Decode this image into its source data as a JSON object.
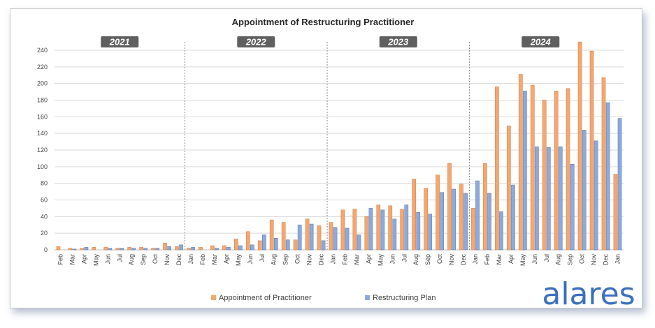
{
  "chart_data": {
    "type": "bar",
    "title": "Appointment of Restructuring Practitioner",
    "ylim": [
      0,
      240
    ],
    "yticks": [
      0,
      20,
      40,
      60,
      80,
      100,
      120,
      140,
      160,
      180,
      200,
      220,
      240
    ],
    "grid": true,
    "legend_position": "bottom",
    "year_labels": [
      "2021",
      "2022",
      "2023",
      "2024"
    ],
    "year_start_indices": [
      0,
      11,
      23,
      35
    ],
    "categories": [
      "Feb",
      "Mar",
      "Apr",
      "May",
      "Jun",
      "Jul",
      "Aug",
      "Sep",
      "Oct",
      "Nov",
      "Dec",
      "Jan",
      "Feb",
      "Mar",
      "Apr",
      "May",
      "Jun",
      "Jul",
      "Aug",
      "Sep",
      "Oct",
      "Nov",
      "Dec",
      "Jan",
      "Feb",
      "Mar",
      "Apr",
      "May",
      "Jun",
      "Jul",
      "Aug",
      "Sep",
      "Oct",
      "Nov",
      "Dec",
      "Jan",
      "Feb",
      "Mar",
      "Apr",
      "May",
      "Jun",
      "Jul",
      "Aug",
      "Sep",
      "Oct",
      "Nov",
      "Dec",
      "Jan"
    ],
    "series": [
      {
        "name": "Appointment of Practitioner",
        "color": "#f4a86f",
        "values": [
          4,
          2,
          2,
          3,
          3,
          2,
          3,
          3,
          2,
          8,
          4,
          2,
          3,
          5,
          5,
          13,
          22,
          11,
          36,
          33,
          12,
          37,
          29,
          33,
          48,
          49,
          40,
          54,
          53,
          49,
          85,
          74,
          90,
          104,
          79,
          50,
          104,
          196,
          149,
          211,
          198,
          180,
          191,
          194,
          250,
          239,
          207,
          91
        ]
      },
      {
        "name": "Restructuring Plan",
        "color": "#8eaadb",
        "values": [
          0,
          1,
          3,
          0,
          2,
          2,
          2,
          2,
          2,
          4,
          6,
          3,
          0,
          2,
          3,
          5,
          6,
          18,
          14,
          12,
          30,
          31,
          11,
          27,
          26,
          18,
          50,
          48,
          37,
          54,
          45,
          43,
          69,
          73,
          68,
          83,
          68,
          46,
          78,
          191,
          124,
          123,
          124,
          103,
          144,
          131,
          177,
          158
        ]
      }
    ]
  },
  "logo": {
    "text": "alares",
    "color": "#3b6fbf"
  }
}
